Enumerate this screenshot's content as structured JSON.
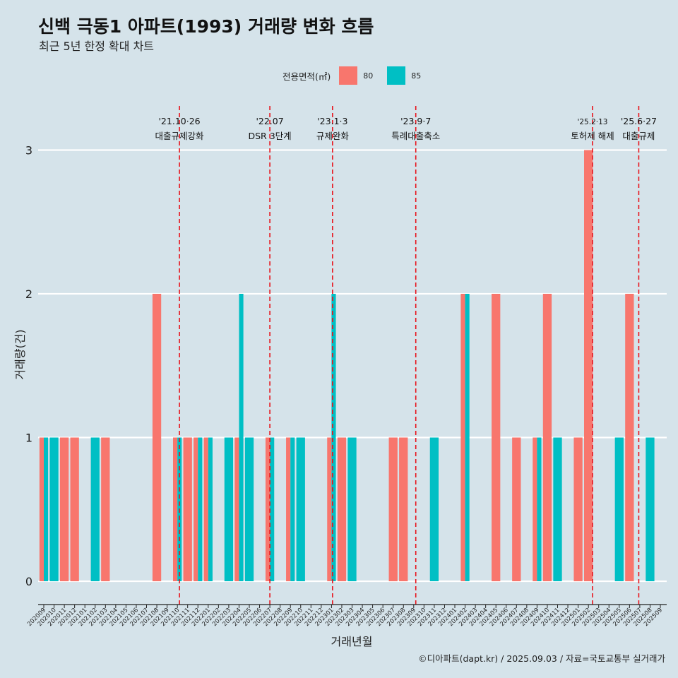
{
  "title": "신백 극동1 아파트(1993) 거래량 변화 흐름",
  "subtitle": "최근 5년 한정 확대 차트",
  "legend": {
    "title": "전용면적(㎡)",
    "items": [
      {
        "label": "80",
        "color": "#F8766D"
      },
      {
        "label": "85",
        "color": "#00BFC4"
      }
    ]
  },
  "caption": "©디아파트(dapt.kr) / 2025.09.03 / 자료=국토교통부 실거래가",
  "chart_data": {
    "type": "bar",
    "xlabel": "거래년월",
    "ylabel": "거래량(건)",
    "ylim": [
      0,
      3
    ],
    "yticks": [
      0,
      1,
      2,
      3
    ],
    "grid": true,
    "legend_position": "top",
    "categories": [
      "202009",
      "202010",
      "202011",
      "202012",
      "202101",
      "202102",
      "202103",
      "202104",
      "202105",
      "202106",
      "202107",
      "202108",
      "202109",
      "202110",
      "202111",
      "202112",
      "202201",
      "202202",
      "202203",
      "202204",
      "202205",
      "202206",
      "202207",
      "202208",
      "202209",
      "202210",
      "202211",
      "202212",
      "202301",
      "202302",
      "202303",
      "202304",
      "202305",
      "202306",
      "202307",
      "202308",
      "202309",
      "202310",
      "202311",
      "202312",
      "202401",
      "202402",
      "202403",
      "202404",
      "202405",
      "202406",
      "202407",
      "202408",
      "202409",
      "202410",
      "202411",
      "202412",
      "202501",
      "202502",
      "202503",
      "202504",
      "202505",
      "202506",
      "202507",
      "202508",
      "202509"
    ],
    "series": [
      {
        "name": "80",
        "color": "#F8766D",
        "values": [
          1,
          0,
          1,
          1,
          0,
          0,
          1,
          0,
          0,
          0,
          0,
          2,
          0,
          1,
          1,
          1,
          1,
          0,
          0,
          1,
          0,
          0,
          1,
          0,
          1,
          0,
          0,
          0,
          1,
          1,
          0,
          0,
          0,
          0,
          1,
          1,
          0,
          0,
          0,
          0,
          0,
          2,
          0,
          0,
          2,
          0,
          1,
          0,
          1,
          2,
          0,
          0,
          1,
          3,
          0,
          0,
          0,
          2,
          0,
          0,
          0
        ]
      },
      {
        "name": "85",
        "color": "#00BFC4",
        "values": [
          1,
          1,
          0,
          0,
          0,
          1,
          0,
          0,
          0,
          0,
          0,
          0,
          0,
          1,
          0,
          1,
          1,
          0,
          1,
          2,
          1,
          0,
          1,
          0,
          1,
          1,
          0,
          0,
          2,
          0,
          1,
          0,
          0,
          0,
          0,
          0,
          0,
          0,
          1,
          0,
          0,
          2,
          0,
          0,
          0,
          0,
          0,
          0,
          1,
          0,
          1,
          0,
          0,
          0,
          0,
          0,
          1,
          0,
          0,
          1,
          0
        ]
      }
    ],
    "events": [
      {
        "date": "'21.10·26",
        "label": "대출규제강화",
        "category": "202110",
        "offset": 0.2,
        "date_small": false
      },
      {
        "date": "'22.07",
        "label": "DSR 3단계",
        "category": "202207",
        "offset": 0.0,
        "date_small": false
      },
      {
        "date": "'23.1·3",
        "label": "규제완화",
        "category": "202301",
        "offset": 0.1,
        "date_small": false
      },
      {
        "date": "'23.9·7",
        "label": "특례대출축소",
        "category": "202309",
        "offset": 0.2,
        "date_small": false
      },
      {
        "date": "'25.2·13",
        "label": "토허제 해제",
        "category": "202502",
        "offset": 0.4,
        "date_small": true
      },
      {
        "date": "'25.6·27",
        "label": "대출규제",
        "category": "202506",
        "offset": 0.9,
        "date_small": false
      }
    ]
  }
}
